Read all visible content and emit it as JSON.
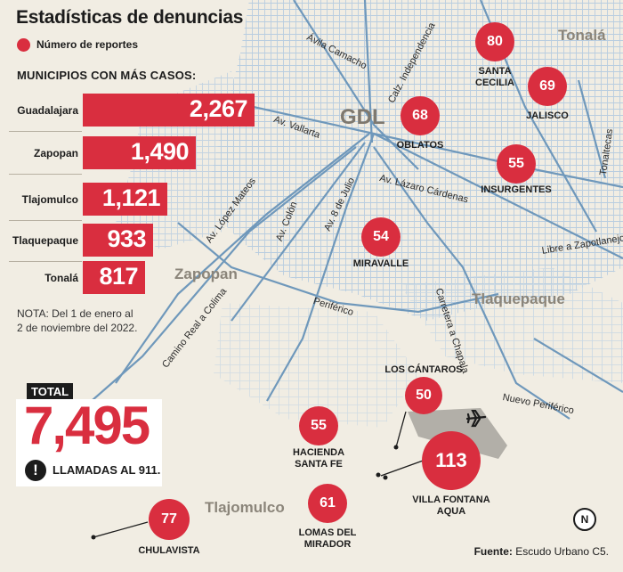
{
  "title": "Estadísticas de denuncias",
  "legend": {
    "label": "Número de reportes",
    "color": "#d92e3f"
  },
  "section_title": "MUNICIPIOS CON MÁS CASOS:",
  "municipios": [
    {
      "name": "Guadalajara",
      "value": "2,267",
      "count": 2267
    },
    {
      "name": "Zapopan",
      "value": "1,490",
      "count": 1490
    },
    {
      "name": "Tlajomulco",
      "value": "1,121",
      "count": 1121
    },
    {
      "name": "Tlaquepaque",
      "value": "933",
      "count": 933
    },
    {
      "name": "Tonalá",
      "value": "817",
      "count": 817
    }
  ],
  "note": {
    "line1": "NOTA: Del 1 de enero al",
    "line2": "2 de noviembre del 2022."
  },
  "total": {
    "tag": "TOTAL",
    "value": "7,495",
    "calls_icon": "!",
    "calls_label": "LLAMADAS AL 911."
  },
  "points": [
    {
      "value": "80",
      "line1": "SANTA",
      "line2": "CECILIA"
    },
    {
      "value": "69",
      "line1": "JALISCO",
      "line2": ""
    },
    {
      "value": "68",
      "line1": "OBLATOS",
      "line2": ""
    },
    {
      "value": "55",
      "line1": "INSURGENTES",
      "line2": ""
    },
    {
      "value": "54",
      "line1": "MIRAVALLE",
      "line2": ""
    },
    {
      "value": "50",
      "line1": "LOS CÁNTAROS",
      "line2": ""
    },
    {
      "value": "113",
      "line1": "VILLA FONTANA",
      "line2": "AQUA"
    },
    {
      "value": "55",
      "line1": "HACIENDA",
      "line2": "SANTA FE"
    },
    {
      "value": "61",
      "line1": "LOMAS DEL",
      "line2": "MIRADOR"
    },
    {
      "value": "77",
      "line1": "CHULAVISTA",
      "line2": ""
    }
  ],
  "cities": [
    "GDL",
    "Zapopan",
    "Tlaquepaque",
    "Tlajomulco",
    "Tonalá"
  ],
  "streets": [
    "Ávila Camacho",
    "Calz. Independencia",
    "Av. Vallarta",
    "Av. Lázaro Cárdenas",
    "Libre a Zapotlanejo",
    "Tonaltecas",
    "Av. López Mateos",
    "Av. Colón",
    "Av. 8 de Julio",
    "Periférico",
    "Carretera a Chapala",
    "Nuevo Periférico",
    "Camino Real a Colima"
  ],
  "airport_icon": "airplane-icon",
  "north_icon": {
    "name": "north-arrow-icon",
    "letter": "N"
  },
  "source": {
    "label": "Fuente:",
    "text": " Escudo Urbano C5."
  }
}
